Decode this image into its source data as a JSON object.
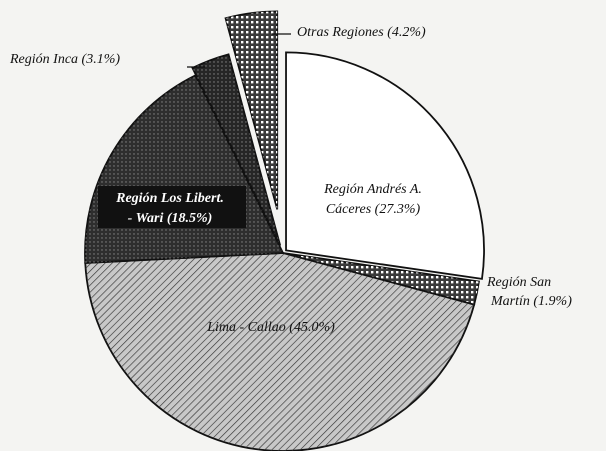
{
  "chart_data": {
    "type": "pie",
    "categories": [
      [
        "Región Andrés A.",
        "Cáceres"
      ],
      [
        "Región San",
        "Martín"
      ],
      [
        "Lima - Callao"
      ],
      [
        "Región Los Libert.",
        "- Wari"
      ],
      [
        "Región Inca"
      ],
      [
        "Otras Regiones"
      ]
    ],
    "values": [
      27.3,
      1.9,
      45.0,
      18.5,
      3.1,
      4.2
    ],
    "value_labels": [
      "(27.3%)",
      "(1.9%)",
      "(45.0%)",
      "(18.5%)",
      "(3.1%)",
      "(4.2%)"
    ],
    "colors": [
      "#ffffff",
      "#3a3a3a",
      "#c8c8c8",
      "#2e2e2e",
      "#262626",
      "#3a3a3a"
    ]
  }
}
